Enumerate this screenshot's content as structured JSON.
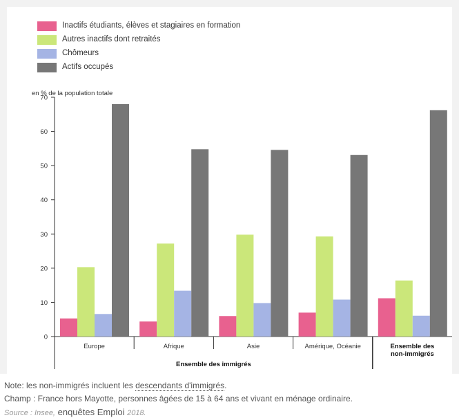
{
  "chart_data": {
    "type": "bar",
    "ylabel": "en % de la population totale",
    "ylim": [
      0,
      70
    ],
    "yticks": [
      0,
      10,
      20,
      30,
      40,
      50,
      60,
      70
    ],
    "grid": false,
    "legend_position": "top-left",
    "categories": [
      "Europe",
      "Afrique",
      "Asie",
      "Amérique, Océanie",
      "Ensemble des non-immigrés"
    ],
    "category_labels": [
      [
        "Europe"
      ],
      [
        "Afrique"
      ],
      [
        "Asie"
      ],
      [
        "Amérique, Océanie"
      ],
      [
        "Ensemble des",
        "non-immigrés"
      ]
    ],
    "group_label": "Ensemble des immigrés",
    "series": [
      {
        "name": "Inactifs étudiants, élèves et stagiaires en formation",
        "color": "#e8618f",
        "values": [
          5.3,
          4.4,
          6.0,
          7.0,
          11.2
        ]
      },
      {
        "name": "Autres inactifs dont retraités",
        "color": "#cbe77a",
        "values": [
          20.3,
          27.2,
          29.8,
          29.3,
          16.4
        ]
      },
      {
        "name": "Chômeurs",
        "color": "#a5b4e4",
        "values": [
          6.6,
          13.4,
          9.8,
          10.8,
          6.1
        ]
      },
      {
        "name": "Actifs occupés",
        "color": "#777777",
        "values": [
          68.0,
          54.8,
          54.6,
          53.1,
          66.2
        ]
      }
    ]
  },
  "notes": {
    "note_prefix": "Note: les non-immigrés incluent les ",
    "note_link": "descendants d'immigrés",
    "note_suffix": ".",
    "champ": "Champ : France hors Mayotte, personnes âgées de 15 à 64 ans et vivant en ménage ordinaire.",
    "source_prefix": "Source : Insee,",
    "source_mid": " enquêtes Emploi ",
    "source_year": "2018."
  }
}
